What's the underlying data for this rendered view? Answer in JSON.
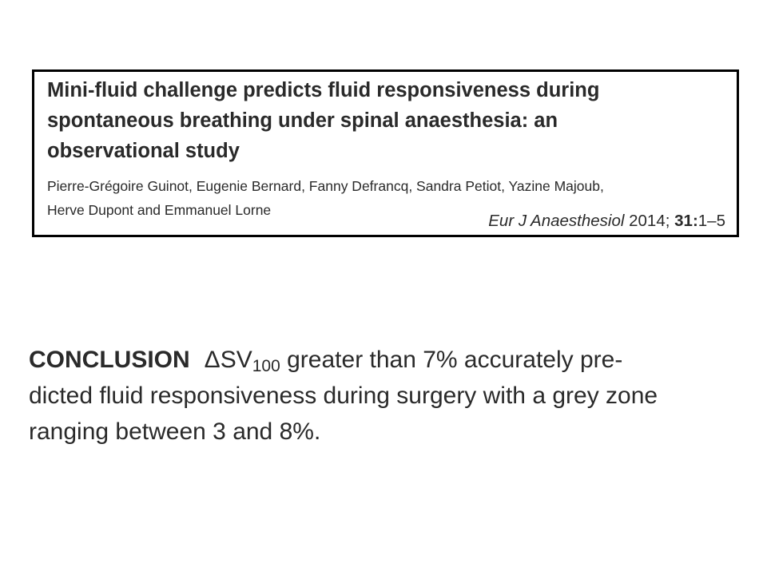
{
  "citation": {
    "title_lines": [
      "Mini-fluid challenge predicts fluid responsiveness during",
      "spontaneous breathing under spinal anaesthesia: an",
      "observational study"
    ],
    "author_lines": [
      "Pierre-Grégoire Guinot, Eugenie Bernard, Fanny Defrancq, Sandra Petiot, Yazine Majoub,",
      "Herve Dupont and Emmanuel Lorne"
    ],
    "journal": "Eur J Anaesthesiol",
    "year": "2014;",
    "volume": "31:",
    "pages": "1–5"
  },
  "conclusion": {
    "heading": "CONCLUSION",
    "symbol": "ΔSV",
    "subscript": "100",
    "line1_rest": "greater than 7% accurately pre-",
    "line2": "dicted fluid responsiveness during surgery with a grey zone",
    "line3": "ranging between 3 and 8%."
  }
}
